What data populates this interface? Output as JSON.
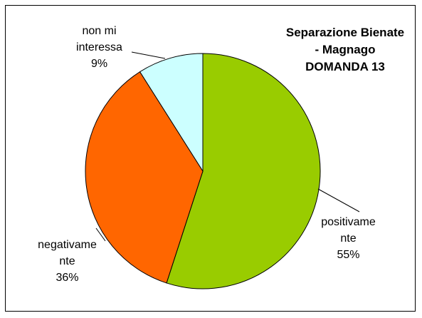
{
  "chart_data": {
    "type": "pie",
    "title": "Separazione Bienate - Magnago DOMANDA 13",
    "categories": [
      "positivamente",
      "negativamente",
      "non mi interessa"
    ],
    "values": [
      55,
      36,
      9
    ],
    "value_labels": [
      "55%",
      "36%",
      "9%"
    ],
    "colors": [
      "#99cc00",
      "#ff6600",
      "#ccffff"
    ]
  }
}
